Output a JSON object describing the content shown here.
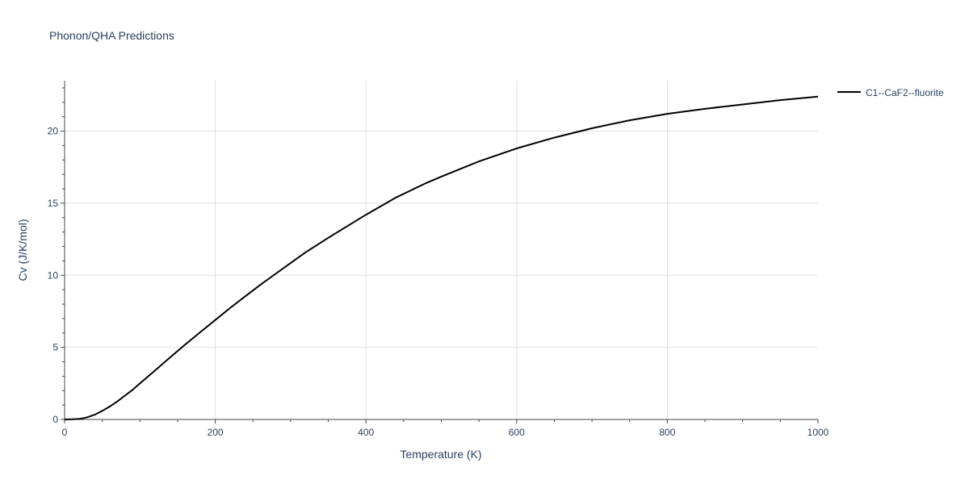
{
  "chart_data": {
    "type": "line",
    "title": "Phonon/QHA Predictions",
    "xlabel": "Temperature (K)",
    "ylabel": "Cv (J/K/mol)",
    "xlim": [
      0,
      1000
    ],
    "ylim": [
      0,
      23.5
    ],
    "xticks": [
      0,
      200,
      400,
      600,
      800,
      1000
    ],
    "yticks": [
      0,
      5,
      10,
      15,
      20
    ],
    "grid": true,
    "legend_position": "top-right",
    "series": [
      {
        "name": "C1--CaF2--fluorite",
        "color": "#000000",
        "x": [
          0,
          10,
          20,
          30,
          40,
          50,
          60,
          70,
          80,
          90,
          100,
          120,
          140,
          160,
          180,
          200,
          220,
          240,
          260,
          280,
          300,
          320,
          350,
          400,
          440,
          480,
          500,
          550,
          600,
          650,
          700,
          750,
          800,
          850,
          900,
          950,
          1000
        ],
        "y": [
          0,
          0.01,
          0.04,
          0.15,
          0.33,
          0.6,
          0.9,
          1.25,
          1.65,
          2.05,
          2.5,
          3.4,
          4.3,
          5.2,
          6.05,
          6.9,
          7.75,
          8.55,
          9.35,
          10.1,
          10.85,
          11.6,
          12.6,
          14.2,
          15.4,
          16.4,
          16.85,
          17.9,
          18.8,
          19.55,
          20.2,
          20.75,
          21.2,
          21.55,
          21.85,
          22.15,
          22.4
        ]
      }
    ]
  }
}
